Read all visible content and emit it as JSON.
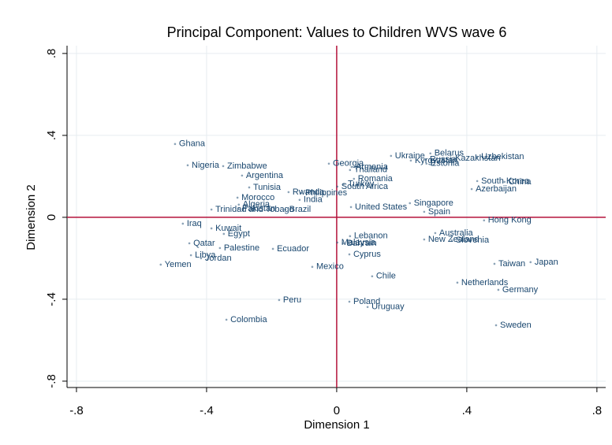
{
  "chart_data": {
    "type": "scatter",
    "title": "Principal Component: Values to Children WVS wave 6",
    "x_label": "Dimension 1",
    "y_label": "Dimension 2",
    "labels": [
      "Ghana",
      "Nigeria",
      "Zimbabwe",
      "Argentina",
      "Tunisia",
      "Rwanda",
      "Philippines",
      "India",
      "Morocco",
      "Algeria",
      "Pakistan",
      "Trinidad and Tobago",
      "Brazil",
      "Georgia",
      "Armenia",
      "Thailand",
      "Romania",
      "Turkey",
      "South Africa",
      "Ukraine",
      "Kyrgyzstan",
      "Belarus",
      "Russia",
      "Estonia",
      "Kazakhstan",
      "Uzbekistan",
      "South Korea",
      "China",
      "Azerbaijan",
      "United States",
      "Singapore",
      "Spain",
      "Hong Kong",
      "Australia",
      "New Zealand",
      "Slovenia",
      "Iraq",
      "Kuwait",
      "Egypt",
      "Qatar",
      "Palestine",
      "Ecuador",
      "Libya",
      "Jordan",
      "Yemen",
      "Mexico",
      "Lebanon",
      "Malaysia",
      "Bahrain",
      "Cyprus",
      "Chile",
      "Peru",
      "Poland",
      "Uruguay",
      "Colombia",
      "Netherlands",
      "Germany",
      "Taiwan",
      "Japan",
      "Sweden"
    ],
    "x": [
      -0.497,
      -0.458,
      -0.349,
      -0.291,
      -0.269,
      -0.148,
      -0.109,
      -0.114,
      -0.305,
      -0.301,
      -0.303,
      -0.385,
      -0.158,
      -0.024,
      0.046,
      0.041,
      0.053,
      0.022,
      0.002,
      0.167,
      0.228,
      0.288,
      0.274,
      0.276,
      0.352,
      0.432,
      0.432,
      0.516,
      0.415,
      0.044,
      0.225,
      0.269,
      0.453,
      0.303,
      0.269,
      0.354,
      -0.473,
      -0.385,
      -0.347,
      -0.453,
      -0.359,
      -0.196,
      -0.448,
      -0.417,
      -0.541,
      -0.075,
      0.041,
      0.002,
      0.019,
      0.039,
      0.109,
      -0.177,
      0.039,
      0.095,
      -0.339,
      0.371,
      0.497,
      0.485,
      0.596,
      0.49
    ],
    "values": [
      0.358,
      0.254,
      0.25,
      0.204,
      0.146,
      0.123,
      0.119,
      0.085,
      0.096,
      0.062,
      0.042,
      0.038,
      0.038,
      0.262,
      0.246,
      0.231,
      0.188,
      0.162,
      0.15,
      0.3,
      0.277,
      0.312,
      0.281,
      0.262,
      0.288,
      0.296,
      0.177,
      0.173,
      0.138,
      0.05,
      0.069,
      0.027,
      -0.015,
      -0.077,
      -0.108,
      -0.112,
      -0.031,
      -0.054,
      -0.081,
      -0.127,
      -0.15,
      -0.154,
      -0.185,
      -0.2,
      -0.231,
      -0.242,
      -0.092,
      -0.123,
      -0.127,
      -0.181,
      -0.288,
      -0.404,
      -0.412,
      -0.438,
      -0.5,
      -0.319,
      -0.354,
      -0.227,
      -0.219,
      -0.527
    ],
    "color": "#1a476f",
    "xlim": [
      -0.829,
      0.827
    ],
    "ylim": [
      -0.831,
      0.838
    ],
    "xticks": [
      {
        "value": -0.8,
        "label": "-.8"
      },
      {
        "value": -0.4,
        "label": "-.4"
      },
      0,
      {
        "value": 0.4,
        "label": ".4"
      },
      {
        "value": 0.8,
        "label": ".8"
      }
    ],
    "yticks": [
      {
        "value": -0.8,
        "label": "-.8"
      },
      {
        "value": -0.4,
        "label": "-.4"
      },
      0,
      {
        "value": 0.4,
        "label": ".4"
      },
      {
        "value": 0.8,
        "label": ".8"
      }
    ],
    "grid": true,
    "reference_lines": {
      "x": 0,
      "y": 0,
      "color": "#b5123b"
    }
  }
}
